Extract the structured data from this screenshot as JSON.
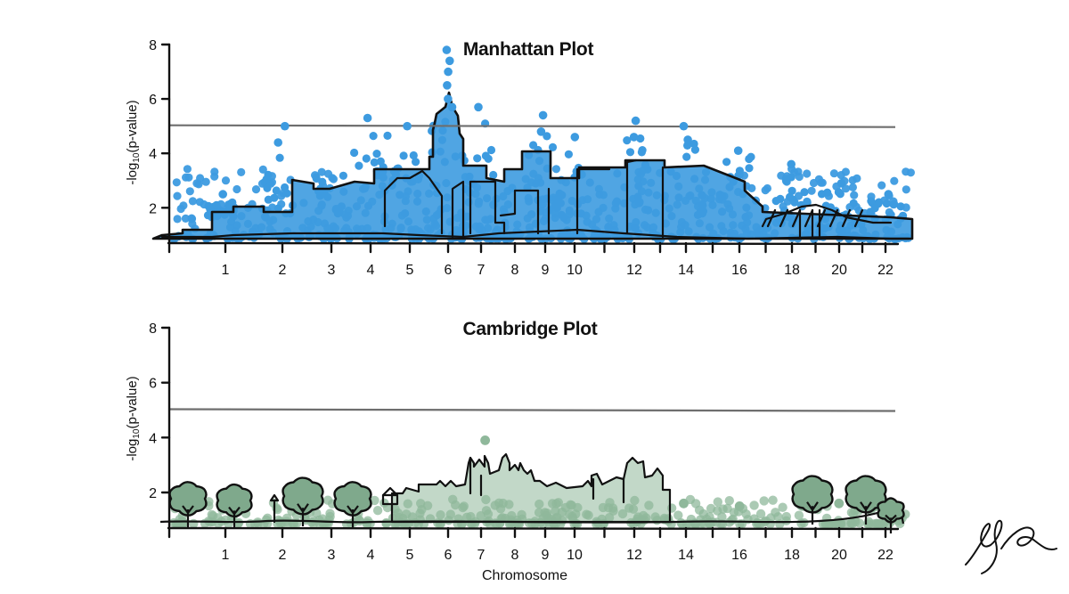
{
  "chart_data": [
    {
      "type": "scatter",
      "title": "Manhattan Plot",
      "ylabel": "-log10(p-value)",
      "xlabel": "",
      "ylim": [
        0.8,
        8
      ],
      "yticks": [
        2,
        4,
        6,
        8
      ],
      "threshold": 5,
      "categories": [
        "1",
        "2",
        "3",
        "4",
        "5",
        "6",
        "7",
        "8",
        "9",
        "10",
        "12",
        "14",
        "16",
        "18",
        "20",
        "22"
      ],
      "point_color": "#3d9be0",
      "highlight_points": [
        {
          "chr": 6,
          "value": 7.8
        },
        {
          "chr": 6,
          "value": 7.4
        },
        {
          "chr": 6,
          "value": 7.0
        },
        {
          "chr": 6,
          "value": 6.5
        },
        {
          "chr": 6,
          "value": 6.0
        },
        {
          "chr": 6,
          "value": 5.7
        },
        {
          "chr": 2,
          "value": 5.0
        },
        {
          "chr": 2,
          "value": 4.4
        },
        {
          "chr": 4,
          "value": 5.3
        },
        {
          "chr": 5,
          "value": 5.0
        },
        {
          "chr": 7,
          "value": 5.7
        },
        {
          "chr": 9,
          "value": 5.4
        },
        {
          "chr": 9,
          "value": 4.8
        },
        {
          "chr": 10,
          "value": 4.6
        },
        {
          "chr": 12,
          "value": 5.2
        },
        {
          "chr": 12,
          "value": 4.6
        },
        {
          "chr": 14,
          "value": 5.0
        },
        {
          "chr": 14,
          "value": 4.5
        },
        {
          "chr": 16,
          "value": 4.1
        },
        {
          "chr": 18,
          "value": 3.6
        },
        {
          "chr": 1,
          "value": 2.5
        },
        {
          "chr": 20,
          "value": 2.9
        },
        {
          "chr": 22,
          "value": 2.5
        }
      ]
    },
    {
      "type": "scatter",
      "title": "Cambridge Plot",
      "ylabel": "-log10(p-value)",
      "xlabel": "Chromosome",
      "ylim": [
        0.8,
        8
      ],
      "yticks": [
        2,
        4,
        6,
        8
      ],
      "threshold": 5,
      "categories": [
        "1",
        "2",
        "3",
        "4",
        "5",
        "6",
        "7",
        "8",
        "9",
        "10",
        "12",
        "14",
        "16",
        "18",
        "20",
        "22"
      ],
      "point_color": "#8fb89b",
      "highlight_points": [
        {
          "chr": 7,
          "value": 3.9
        },
        {
          "chr": 14,
          "value": 1.6
        },
        {
          "chr": 16,
          "value": 1.5
        },
        {
          "chr": 20,
          "value": 1.6
        }
      ]
    }
  ]
}
